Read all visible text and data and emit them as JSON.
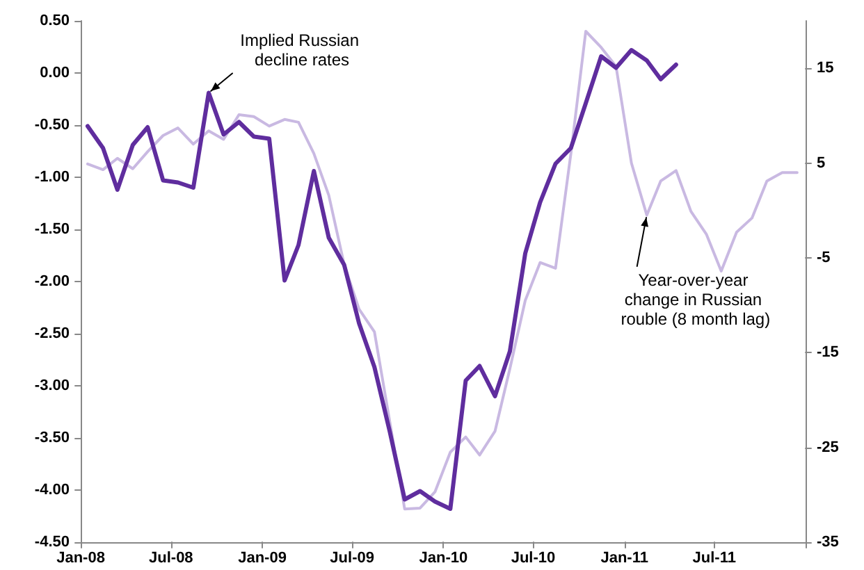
{
  "chart_data": {
    "type": "line",
    "x": [
      "2008-01-15",
      "2008-02-15",
      "2008-03-15",
      "2008-04-15",
      "2008-05-15",
      "2008-06-15",
      "2008-07-15",
      "2008-08-15",
      "2008-09-15",
      "2008-10-15",
      "2008-11-15",
      "2008-12-15",
      "2009-01-15",
      "2009-02-15",
      "2009-03-15",
      "2009-04-15",
      "2009-05-15",
      "2009-06-15",
      "2009-07-15",
      "2009-08-15",
      "2009-09-15",
      "2009-10-15",
      "2009-11-15",
      "2009-12-15",
      "2010-01-15",
      "2010-02-15",
      "2010-03-15",
      "2010-04-15",
      "2010-05-15",
      "2010-06-15",
      "2010-07-15",
      "2010-08-15",
      "2010-09-15",
      "2010-10-15",
      "2010-11-15",
      "2010-12-15",
      "2011-01-15",
      "2011-02-15",
      "2011-03-15",
      "2011-04-15",
      "2011-05-15",
      "2011-06-15",
      "2011-07-15",
      "2011-08-15",
      "2011-09-15",
      "2011-10-15",
      "2011-11-15",
      "2011-12-15"
    ],
    "series": [
      {
        "color": "#c9b9e2",
        "axis": "y2",
        "values": [
          4.9,
          4.3,
          5.5,
          4.4,
          6.2,
          7.9,
          8.7,
          7.0,
          8.4,
          7.5,
          10.1,
          9.9,
          8.9,
          9.6,
          9.3,
          6.0,
          1.6,
          -5.7,
          -10.4,
          -12.8,
          -22.3,
          -31.5,
          -31.4,
          -29.7,
          -25.5,
          -23.9,
          -25.8,
          -23.3,
          -16.7,
          -9.5,
          -5.5,
          -6.1,
          6.0,
          18.9,
          17.2,
          15.2,
          5.0,
          -0.5,
          3.1,
          4.2,
          -0.1,
          -2.5,
          -6.4,
          -2.3,
          -0.8,
          3.1,
          4.0,
          4.0
        ]
      },
      {
        "color": "#5f2d9e",
        "values": [
          -0.51,
          -0.72,
          -1.12,
          -0.69,
          -0.52,
          -1.03,
          -1.05,
          -1.1,
          -0.19,
          -0.59,
          -0.47,
          -0.61,
          -0.63,
          -1.99,
          -1.65,
          -0.94,
          -1.58,
          -1.84,
          -2.4,
          -2.82,
          -3.44,
          -4.09,
          -4.01,
          -4.11,
          -4.18,
          -2.95,
          -2.81,
          -3.1,
          -2.67,
          -1.73,
          -1.24,
          -0.87,
          -0.72,
          -0.29,
          0.16,
          0.05,
          0.22,
          0.12,
          -0.06,
          0.08,
          null,
          null,
          null,
          null,
          null,
          null,
          null,
          null
        ]
      }
    ],
    "xlim": [
      "2008-01-01",
      "2012-01-01"
    ],
    "xticks": [
      {
        "value": "2008-01-01",
        "label": "Jan-08"
      },
      {
        "value": "2008-07-01",
        "label": "Jul-08"
      },
      {
        "value": "2009-01-01",
        "label": "Jan-09"
      },
      {
        "value": "2009-07-01",
        "label": "Jul-09"
      },
      {
        "value": "2010-01-01",
        "label": "Jan-10"
      },
      {
        "value": "2010-07-01",
        "label": "Jul-10"
      },
      {
        "value": "2011-01-01",
        "label": "Jan-11"
      },
      {
        "value": "2011-07-01",
        "label": "Jul-11"
      },
      {
        "value": "2012-01-01",
        "label": null
      }
    ],
    "ylim": [
      -4.5,
      0.5
    ],
    "yticks": [
      {
        "value": -4.5,
        "label": "-4.50"
      },
      {
        "value": -4,
        "label": "-4.00"
      },
      {
        "value": -3.5,
        "label": "-3.50"
      },
      {
        "value": -3,
        "label": "-3.00"
      },
      {
        "value": -2.5,
        "label": "-2.50"
      },
      {
        "value": -2,
        "label": "-2.00"
      },
      {
        "value": -1.5,
        "label": "-1.50"
      },
      {
        "value": -1,
        "label": "-1.00"
      },
      {
        "value": -0.5,
        "label": "-0.50"
      },
      {
        "value": 0,
        "label": "0.00"
      },
      {
        "value": 0.5,
        "label": "0.50"
      }
    ],
    "y2lim": [
      -35,
      20
    ],
    "y2ticks": [
      -35,
      -25,
      -15,
      -5,
      5,
      15
    ],
    "marker": "none",
    "line_style": "solid",
    "grid": false,
    "annotations": [
      {
        "text": "Implied Russian decline rates",
        "x": "2008-09-15",
        "y": -0.19
      },
      {
        "text": "Year-over-year change in Russian rouble (8 month lag)",
        "x": "2011-02-15",
        "y": -1.36
      }
    ]
  }
}
